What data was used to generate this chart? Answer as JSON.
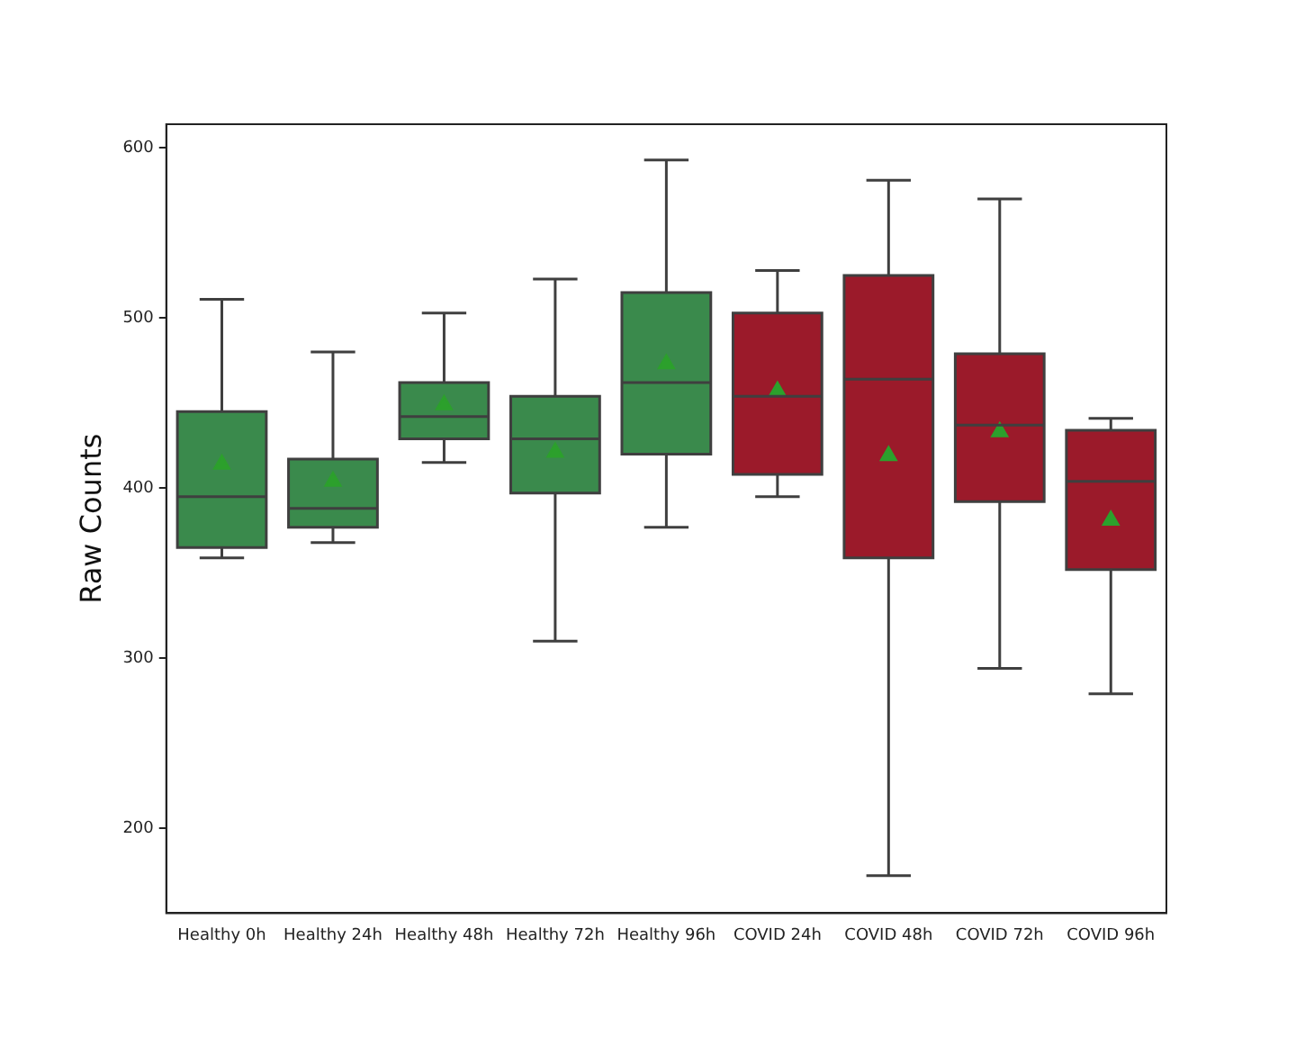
{
  "chart_data": {
    "type": "box",
    "ylabel": "Raw Counts",
    "categories": [
      "Healthy 0h",
      "Healthy 24h",
      "Healthy 48h",
      "Healthy 72h",
      "Healthy 96h",
      "COVID 24h",
      "COVID 48h",
      "COVID 72h",
      "COVID 96h"
    ],
    "colors": [
      "#3a8a4c",
      "#3a8a4c",
      "#3a8a4c",
      "#3a8a4c",
      "#3a8a4c",
      "#9b1a2a",
      "#9b1a2a",
      "#9b1a2a",
      "#9b1a2a"
    ],
    "boxes": [
      {
        "low": 359,
        "q1": 365,
        "median": 395,
        "q3": 445,
        "high": 511,
        "mean": 414
      },
      {
        "low": 368,
        "q1": 377,
        "median": 388,
        "q3": 417,
        "high": 480,
        "mean": 404
      },
      {
        "low": 415,
        "q1": 429,
        "median": 442,
        "q3": 462,
        "high": 503,
        "mean": 449
      },
      {
        "low": 310,
        "q1": 397,
        "median": 429,
        "q3": 454,
        "high": 523,
        "mean": 421
      },
      {
        "low": 377,
        "q1": 420,
        "median": 462,
        "q3": 515,
        "high": 593,
        "mean": 473
      },
      {
        "low": 395,
        "q1": 408,
        "median": 454,
        "q3": 503,
        "high": 528,
        "mean": 457
      },
      {
        "low": 172,
        "q1": 359,
        "median": 464,
        "q3": 525,
        "high": 581,
        "mean": 419
      },
      {
        "low": 294,
        "q1": 392,
        "median": 437,
        "q3": 479,
        "high": 570,
        "mean": 433
      },
      {
        "low": 279,
        "q1": 352,
        "median": 404,
        "q3": 434,
        "high": 441,
        "mean": 381
      }
    ],
    "ylim": [
      150,
      614
    ],
    "yticks": [
      200,
      300,
      400,
      500,
      600
    ],
    "marker": "triangle",
    "grid": false
  }
}
